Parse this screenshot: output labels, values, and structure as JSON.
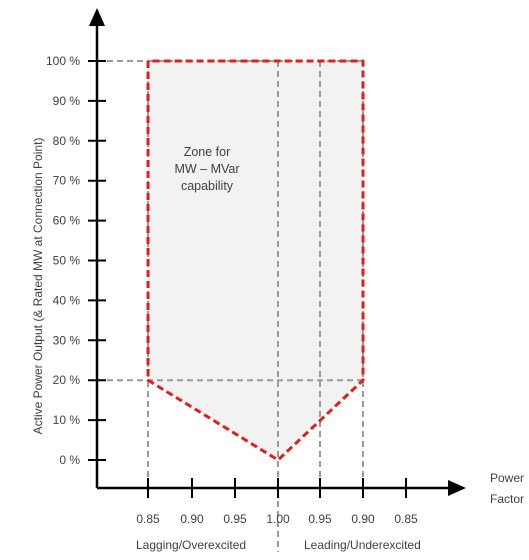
{
  "chart_data": {
    "type": "area",
    "title": "",
    "xlabel": "Power Factor",
    "ylabel": "Active Power Output (& Rated MW at Connection Point)",
    "x_ticks": [
      "0.85",
      "0.90",
      "0.95",
      "1.00",
      "0.95",
      "0.90",
      "0.85"
    ],
    "x_ticks_position": [
      -0.15,
      -0.1,
      -0.05,
      0.0,
      0.05,
      0.1,
      0.15
    ],
    "y_ticks": [
      "0 %",
      "10 %",
      "20 %",
      "30 %",
      "40 %",
      "50 %",
      "60 %",
      "70 %",
      "80 %",
      "90 %",
      "100 %"
    ],
    "ylim": [
      0,
      100
    ],
    "region_labels": [
      "Lagging/Overexcited",
      "Leading/Underexcited"
    ],
    "annotation_lines": [
      "Zone for",
      "MW – MVar",
      "capability"
    ],
    "boundary": {
      "x": [
        -0.15,
        -0.15,
        0.0,
        0.1,
        0.1,
        -0.15
      ],
      "y": [
        100,
        20,
        0,
        20,
        100,
        100
      ]
    },
    "reference_lines": [
      {
        "orientation": "horizontal",
        "y": 100
      },
      {
        "orientation": "horizontal",
        "y": 20
      },
      {
        "orientation": "vertical",
        "x": -0.15
      },
      {
        "orientation": "vertical",
        "x": 0.0
      },
      {
        "orientation": "vertical",
        "x": 0.05
      },
      {
        "orientation": "vertical",
        "x": 0.1
      }
    ],
    "colors": {
      "boundary": "#e02020",
      "fill": "#f2f2f2",
      "axis": "#000000",
      "grid": "#999999"
    },
    "grid": false,
    "legend": "none"
  }
}
